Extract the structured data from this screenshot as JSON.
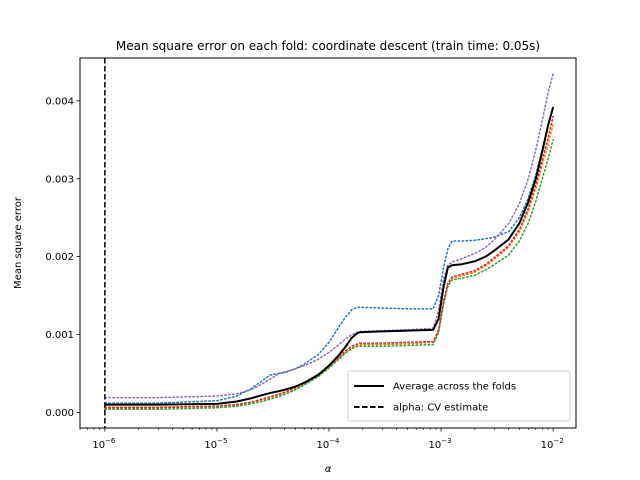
{
  "chart_data": {
    "type": "line",
    "title": "Mean square error on each fold: coordinate descent (train time: 0.05s)",
    "xlabel": "α",
    "ylabel": "Mean square error",
    "xscale": "log",
    "xlim": [
      6e-07,
      0.016
    ],
    "ylim": [
      -0.0002,
      0.00455
    ],
    "x_ticks": [
      {
        "value": 1e-06,
        "base": "10",
        "exp": "−6"
      },
      {
        "value": 1e-05,
        "base": "10",
        "exp": "−5"
      },
      {
        "value": 0.0001,
        "base": "10",
        "exp": "−4"
      },
      {
        "value": 0.001,
        "base": "10",
        "exp": "−3"
      },
      {
        "value": 0.01,
        "base": "10",
        "exp": "−2"
      }
    ],
    "y_ticks": [
      {
        "value": 0.0,
        "label": "0.000"
      },
      {
        "value": 0.001,
        "label": "0.001"
      },
      {
        "value": 0.002,
        "label": "0.002"
      },
      {
        "value": 0.003,
        "label": "0.003"
      },
      {
        "value": 0.004,
        "label": "0.004"
      }
    ],
    "grid": false,
    "legend_position": "bottom-right",
    "legend": [
      {
        "label": "Average across the folds",
        "style": "solid",
        "color": "#000000"
      },
      {
        "label": "alpha: CV estimate",
        "style": "dashed",
        "color": "#000000"
      }
    ],
    "vline": {
      "x": 1e-06,
      "style": "dashed",
      "color": "#000000"
    },
    "x": [
      1e-06,
      3e-06,
      1e-05,
      1.5e-05,
      2e-05,
      2.5e-05,
      3e-05,
      3.5e-05,
      4e-05,
      5e-05,
      6e-05,
      8e-05,
      0.0001,
      0.00012,
      0.00014,
      0.00016,
      0.00018,
      0.00019,
      0.0003,
      0.0005,
      0.00085,
      0.00095,
      0.00105,
      0.00115,
      0.00125,
      0.0015,
      0.002,
      0.0025,
      0.003,
      0.004,
      0.005,
      0.006,
      0.007,
      0.008,
      0.009,
      0.01
    ],
    "series": [
      {
        "style": "dotted",
        "color": "#1f77b4",
        "values": [
          0.00012,
          0.00012,
          0.00015,
          0.00021,
          0.0003,
          0.0004,
          0.00048,
          0.0005,
          0.00051,
          0.00056,
          0.00062,
          0.00074,
          0.0009,
          0.00108,
          0.00122,
          0.00132,
          0.00135,
          0.00135,
          0.00134,
          0.00133,
          0.00133,
          0.0015,
          0.00185,
          0.0021,
          0.0022,
          0.0022,
          0.00221,
          0.00223,
          0.00225,
          0.00232,
          0.0025,
          0.00275,
          0.00305,
          0.00338,
          0.00368,
          0.0039
        ]
      },
      {
        "style": "dotted",
        "color": "#ff7f0e",
        "values": [
          7e-05,
          7e-05,
          8e-05,
          0.0001,
          0.00013,
          0.00016,
          0.00019,
          0.00022,
          0.00024,
          0.0003,
          0.00036,
          0.00047,
          0.00058,
          0.00068,
          0.00077,
          0.00083,
          0.00086,
          0.00087,
          0.00087,
          0.00088,
          0.0009,
          0.00105,
          0.0014,
          0.00165,
          0.00172,
          0.00175,
          0.0018,
          0.00188,
          0.00197,
          0.00212,
          0.00232,
          0.00258,
          0.00288,
          0.00318,
          0.00343,
          0.0037
        ]
      },
      {
        "style": "dotted",
        "color": "#2ca02c",
        "values": [
          4e-05,
          4e-05,
          6e-05,
          8e-05,
          0.00011,
          0.00014,
          0.00017,
          0.0002,
          0.00023,
          0.00029,
          0.00035,
          0.00046,
          0.00057,
          0.00067,
          0.00076,
          0.00082,
          0.00085,
          0.00085,
          0.00085,
          0.00086,
          0.00087,
          0.00102,
          0.00138,
          0.00162,
          0.0017,
          0.00172,
          0.00176,
          0.00183,
          0.0019,
          0.00202,
          0.0022,
          0.00243,
          0.00271,
          0.003,
          0.00325,
          0.0035
        ]
      },
      {
        "style": "dotted",
        "color": "#d62728",
        "values": [
          6e-05,
          6e-05,
          8e-05,
          0.0001,
          0.00013,
          0.00017,
          0.0002,
          0.00023,
          0.00026,
          0.00032,
          0.00038,
          0.00049,
          0.0006,
          0.0007,
          0.00079,
          0.00085,
          0.00088,
          0.00089,
          0.00089,
          0.0009,
          0.00091,
          0.00106,
          0.00142,
          0.00166,
          0.00174,
          0.00177,
          0.00182,
          0.0019,
          0.00199,
          0.00214,
          0.00235,
          0.00262,
          0.00293,
          0.00324,
          0.00352,
          0.0038
        ]
      },
      {
        "style": "dotted",
        "color": "#9467bd",
        "values": [
          0.00019,
          0.00019,
          0.00021,
          0.00024,
          0.00029,
          0.00036,
          0.00043,
          0.00049,
          0.00052,
          0.00056,
          0.0006,
          0.00068,
          0.00077,
          0.00086,
          0.00094,
          0.001,
          0.00103,
          0.00104,
          0.00105,
          0.00106,
          0.00108,
          0.0013,
          0.0017,
          0.00189,
          0.00193,
          0.00197,
          0.00204,
          0.00212,
          0.00222,
          0.00242,
          0.00268,
          0.003,
          0.00337,
          0.00375,
          0.0041,
          0.00435
        ]
      },
      {
        "name": "Average across the folds",
        "style": "solid",
        "color": "#000000",
        "values": [
          0.0001,
          0.0001,
          0.00011,
          0.00014,
          0.00018,
          0.00022,
          0.00025,
          0.00027,
          0.00029,
          0.00033,
          0.00038,
          0.00048,
          0.0006,
          0.00072,
          0.00084,
          0.00096,
          0.00102,
          0.00103,
          0.00104,
          0.00105,
          0.00106,
          0.0012,
          0.0016,
          0.00186,
          0.00189,
          0.0019,
          0.00194,
          0.002,
          0.00208,
          0.00222,
          0.00243,
          0.0027,
          0.003,
          0.00335,
          0.00368,
          0.00392
        ]
      }
    ]
  }
}
